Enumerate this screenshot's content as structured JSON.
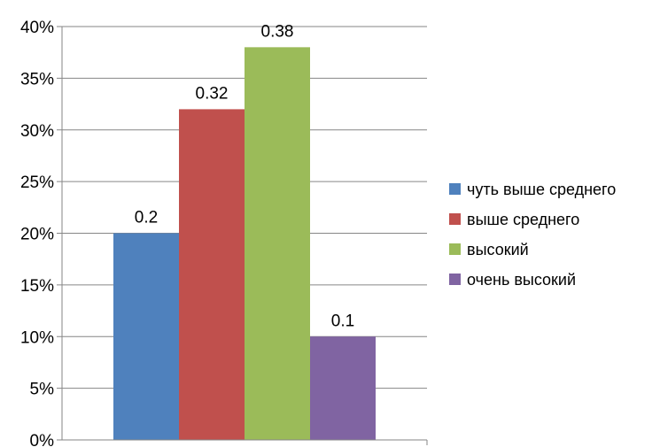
{
  "chart_data": {
    "type": "bar",
    "categories": [
      ""
    ],
    "series": [
      {
        "name": "чуть выше среднего",
        "values": [
          0.2
        ],
        "color": "#4f81bd"
      },
      {
        "name": "выше среднего",
        "values": [
          0.32
        ],
        "color": "#c0504d"
      },
      {
        "name": "высокий",
        "values": [
          0.38
        ],
        "color": "#9bbb59"
      },
      {
        "name": "очень высокий",
        "values": [
          0.1
        ],
        "color": "#8064a2"
      }
    ],
    "data_labels": [
      "0.2",
      "0.32",
      "0.38",
      "0.1"
    ],
    "y_ticks": [
      "0%",
      "5%",
      "10%",
      "15%",
      "20%",
      "25%",
      "30%",
      "35%",
      "40%"
    ],
    "ylim": [
      0,
      0.4
    ],
    "grid": true,
    "legend_position": "right"
  }
}
